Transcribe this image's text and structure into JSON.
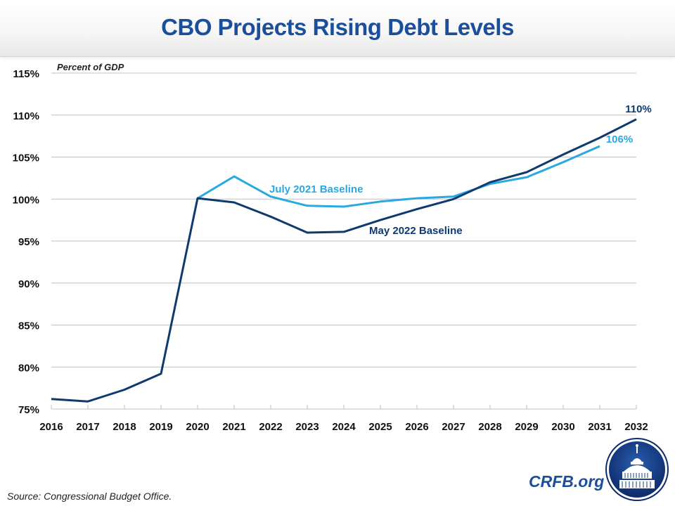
{
  "header": {
    "title": "CBO Projects Rising Debt Levels"
  },
  "footer": {
    "source": "Source: Congressional Budget Office.",
    "brand": "CRFB.org",
    "logo_icon": "capitol-dome-icon"
  },
  "colors": {
    "title": "#1b4f9c",
    "may_2022": "#0e3a6e",
    "july_2021": "#29a9e0",
    "grid": "#c0c0c0"
  },
  "chart_data": {
    "type": "line",
    "title": "CBO Projects Rising Debt Levels",
    "ylabel": "Percent of GDP",
    "xlabel": "",
    "ylim": [
      75,
      115
    ],
    "yticks": [
      75,
      80,
      85,
      90,
      95,
      100,
      105,
      110,
      115
    ],
    "ytick_labels": [
      "75%",
      "80%",
      "85%",
      "90%",
      "95%",
      "100%",
      "105%",
      "110%",
      "115%"
    ],
    "grid": true,
    "x": [
      "2016",
      "2017",
      "2018",
      "2019",
      "2020",
      "2021",
      "2022",
      "2023",
      "2024",
      "2025",
      "2026",
      "2027",
      "2028",
      "2029",
      "2030",
      "2031",
      "2032"
    ],
    "series": [
      {
        "name": "May 2022 Baseline",
        "color": "#0e3a6e",
        "values": [
          76.2,
          75.9,
          77.3,
          79.2,
          100.1,
          99.6,
          97.9,
          96.0,
          96.1,
          97.5,
          98.8,
          100.0,
          102.0,
          103.2,
          105.3,
          107.3,
          109.5
        ],
        "end_label": "110%"
      },
      {
        "name": "July 2021 Baseline",
        "color": "#29a9e0",
        "values": [
          null,
          null,
          null,
          null,
          100.1,
          102.7,
          100.3,
          99.2,
          99.1,
          99.7,
          100.1,
          100.3,
          101.8,
          102.6,
          104.4,
          106.3,
          null
        ],
        "end_label": "106%"
      }
    ]
  }
}
